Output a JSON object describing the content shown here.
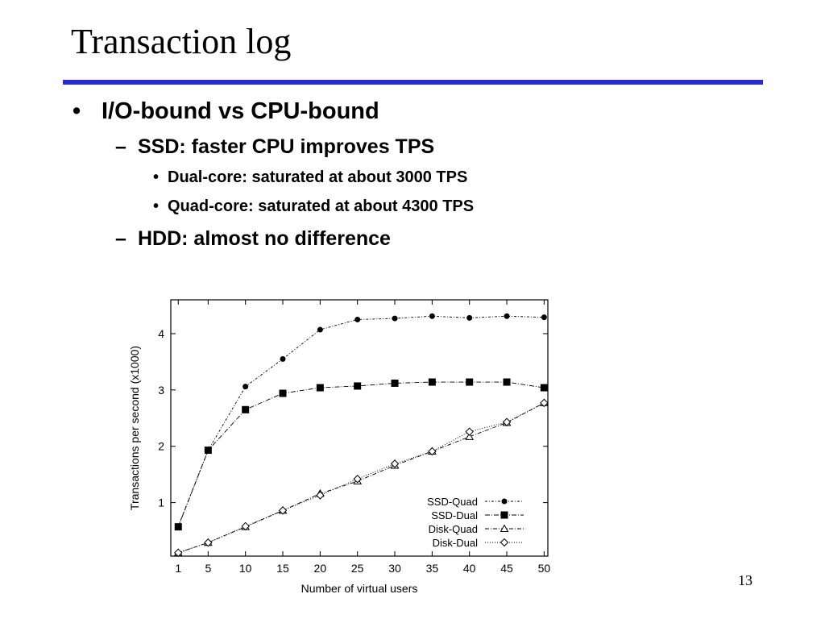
{
  "slide": {
    "title": "Transaction log",
    "bullet1": "I/O-bound vs CPU-bound",
    "bullet1_mark": "•",
    "sub1": "SSD: faster CPU improves TPS",
    "sub1_mark": "–",
    "sub1_items": [
      "Dual-core: saturated at about 3000 TPS",
      "Quad-core: saturated at about 4300 TPS"
    ],
    "sub_item_mark": "•",
    "sub2": "HDD: almost no difference",
    "sub2_mark": "–",
    "page_number": "13",
    "accent_color": "#2b2bd0"
  },
  "chart_data": {
    "type": "line",
    "xlabel": "Number of virtual users",
    "ylabel": "Transactions per second (x1000)",
    "x": [
      1,
      5,
      10,
      15,
      20,
      25,
      30,
      35,
      40,
      45,
      50
    ],
    "x_ticks": [
      "1",
      "5",
      "10",
      "15",
      "20",
      "25",
      "30",
      "35",
      "40",
      "45",
      "50"
    ],
    "y_ticks": [
      "1",
      "2",
      "3",
      "4"
    ],
    "xlim": [
      0,
      50.5
    ],
    "ylim": [
      0.05,
      4.6
    ],
    "grid": false,
    "legend_position": "bottom-right",
    "series": [
      {
        "name": "SSD-Quad",
        "marker": "circle",
        "values": [
          0.58,
          1.93,
          3.06,
          3.55,
          4.07,
          4.25,
          4.27,
          4.31,
          4.28,
          4.31,
          4.29
        ]
      },
      {
        "name": "SSD-Dual",
        "marker": "square",
        "values": [
          0.57,
          1.93,
          2.65,
          2.94,
          3.04,
          3.07,
          3.12,
          3.14,
          3.14,
          3.14,
          3.04
        ]
      },
      {
        "name": "Disk-Quad",
        "marker": "triangle",
        "values": [
          0.11,
          0.29,
          0.57,
          0.86,
          1.16,
          1.38,
          1.66,
          1.91,
          2.17,
          2.42,
          2.77
        ]
      },
      {
        "name": "Disk-Dual",
        "marker": "diamond",
        "values": [
          0.11,
          0.29,
          0.58,
          0.86,
          1.13,
          1.42,
          1.69,
          1.91,
          2.26,
          2.43,
          2.77
        ]
      }
    ]
  }
}
